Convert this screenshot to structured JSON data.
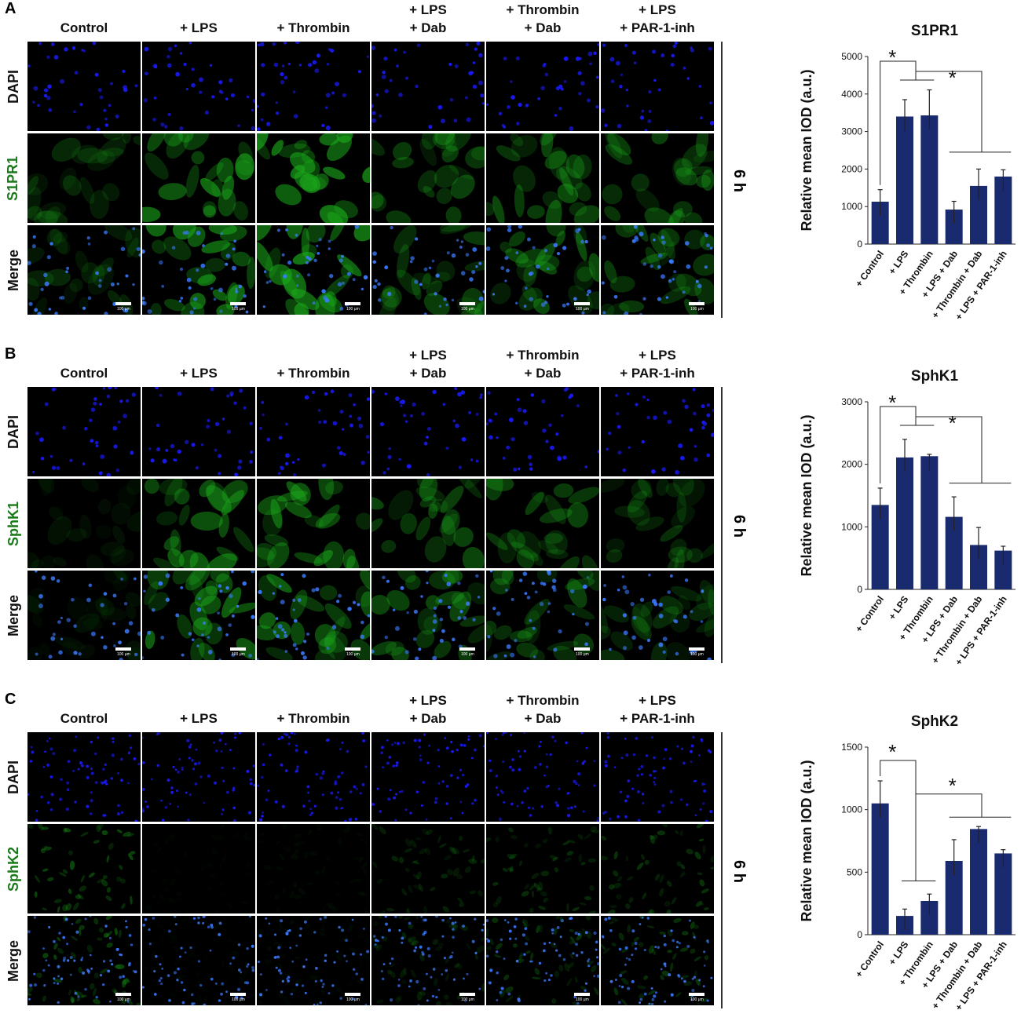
{
  "column_labels": [
    "Control",
    "+ LPS",
    "+ Thrombin",
    "+ LPS\n+ Dab",
    "+ Thrombin\n+ Dab",
    "+ LPS\n+ PAR-1-inh"
  ],
  "scale_bar_label": "100 μm",
  "time_label": "6 h",
  "colors": {
    "dapi": "#1a1aff",
    "green": "#1aa61a",
    "label_green": "#1a7a1a",
    "bar": "#1a2a6e"
  },
  "panels": [
    {
      "letter": "A",
      "row_labels": [
        "DAPI",
        "S1PR1",
        "Merge"
      ]
    },
    {
      "letter": "B",
      "row_labels": [
        "DAPI",
        "SphK1",
        "Merge"
      ]
    },
    {
      "letter": "C",
      "row_labels": [
        "DAPI",
        "SphK2",
        "Merge"
      ]
    }
  ],
  "chart_data": [
    {
      "type": "bar",
      "title": "S1PR1",
      "ylabel": "Relative mean IOD (a.u.)",
      "categories": [
        "+ Control",
        "+ LPS",
        "+ Thrombin",
        "+ LPS + Dab",
        "+ Thrombin + Dab",
        "+ LPS + PAR-1-inh"
      ],
      "values": [
        1130,
        3400,
        3430,
        920,
        1550,
        1800
      ],
      "errors": [
        320,
        450,
        680,
        220,
        450,
        180
      ],
      "ylim": [
        0,
        5000
      ],
      "yticks": [
        "0",
        "1000",
        "2000",
        "3000",
        "4000",
        "5000"
      ],
      "significance": [
        "*",
        "*"
      ]
    },
    {
      "type": "bar",
      "title": "SphK1",
      "ylabel": "Relative mean IOD (a.u.)",
      "categories": [
        "+ Control",
        "+ LPS",
        "+ Thrombin",
        "+ LPS + Dab",
        "+ Thrombin + Dab",
        "+ LPS + PAR-1-inh"
      ],
      "values": [
        1350,
        2110,
        2130,
        1160,
        710,
        620
      ],
      "errors": [
        270,
        290,
        30,
        320,
        280,
        70
      ],
      "ylim": [
        0,
        3000
      ],
      "yticks": [
        "0",
        "1000",
        "2000",
        "3000"
      ],
      "significance": [
        "*",
        "*"
      ]
    },
    {
      "type": "bar",
      "title": "SphK2",
      "ylabel": "Relative mean IOD (a.u.)",
      "categories": [
        "+ Control",
        "+ LPS",
        "+ Thrombin",
        "+ LPS + Dab",
        "+ Thrombin + Dab",
        "+ LPS + PAR-1-inh"
      ],
      "values": [
        1050,
        150,
        270,
        590,
        845,
        650
      ],
      "errors": [
        180,
        55,
        55,
        170,
        20,
        30
      ],
      "ylim": [
        0,
        1500
      ],
      "yticks": [
        "0",
        "500",
        "1000",
        "1500"
      ],
      "significance": [
        "*",
        "*"
      ]
    }
  ]
}
